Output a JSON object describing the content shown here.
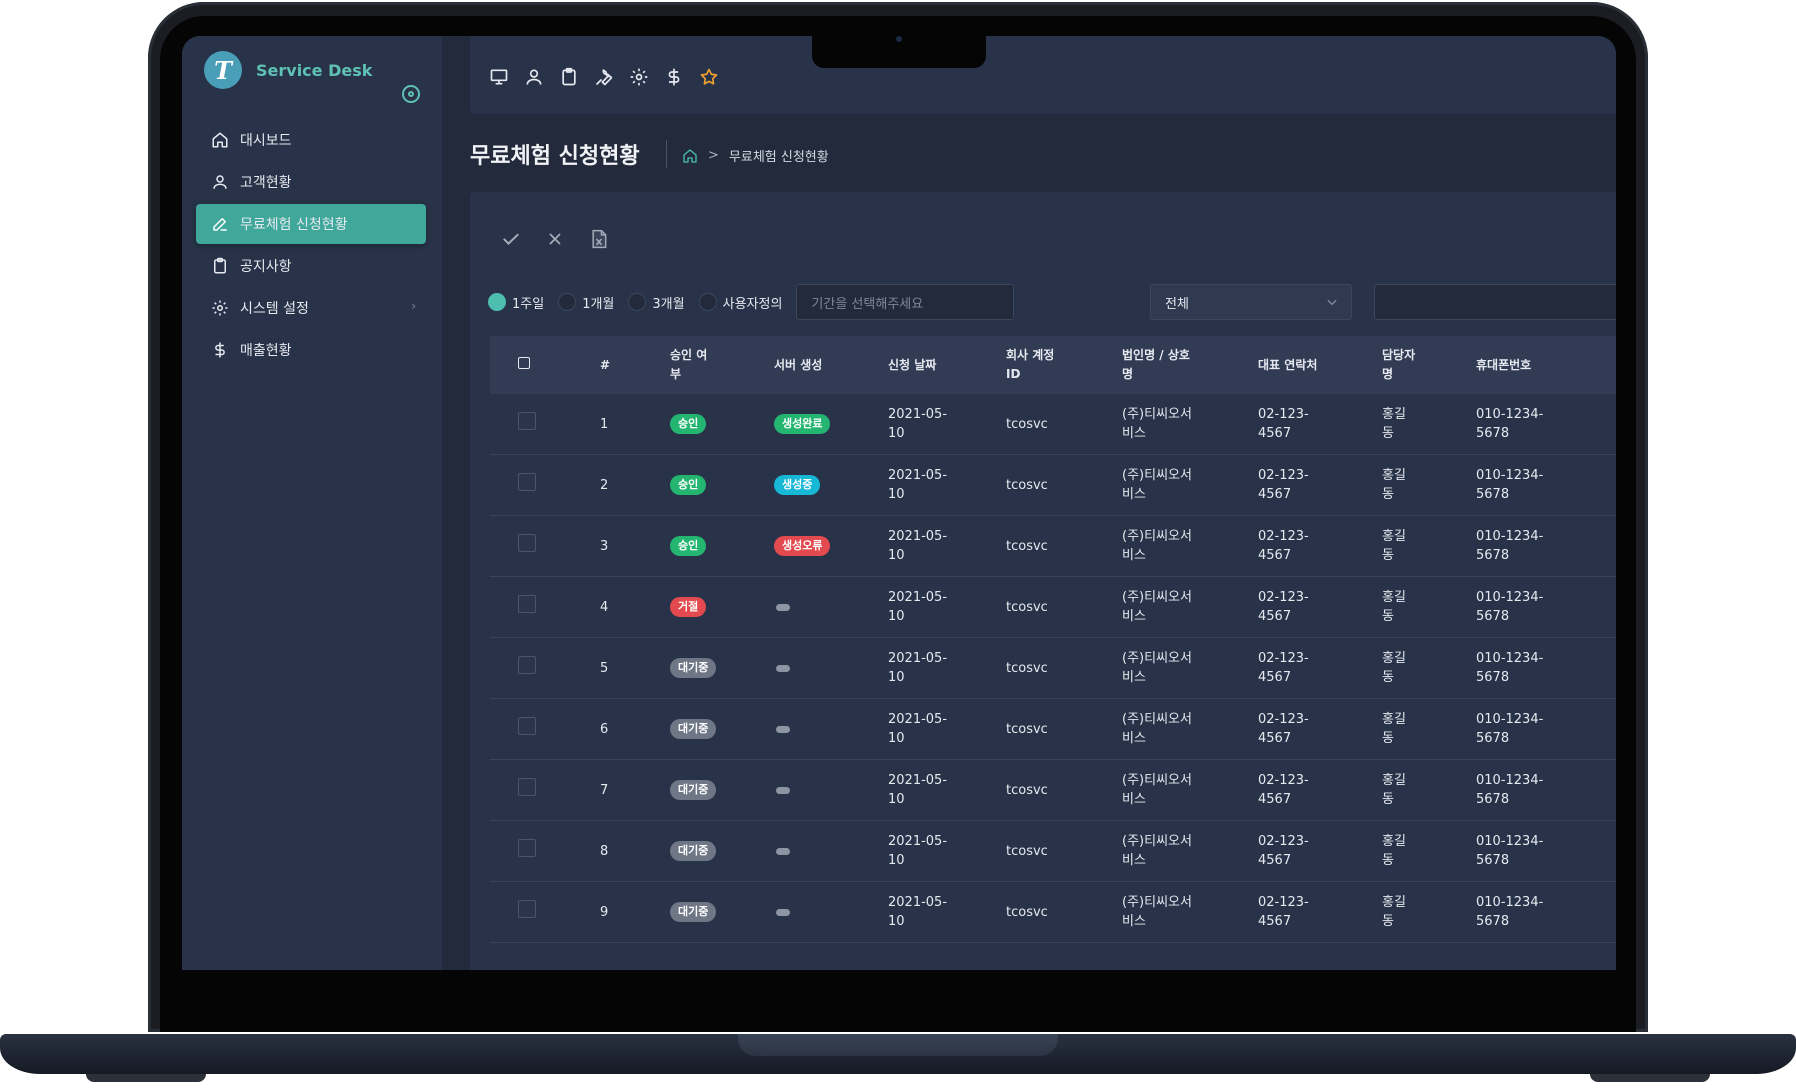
{
  "brand": {
    "logo_letter": "T",
    "name": "Service Desk"
  },
  "sidebar": {
    "items": [
      {
        "label": "대시보드",
        "icon": "home-icon",
        "active": false
      },
      {
        "label": "고객현황",
        "icon": "user-icon",
        "active": false
      },
      {
        "label": "무료체험 신청현황",
        "icon": "pencil-icon",
        "active": true
      },
      {
        "label": "공지사항",
        "icon": "clipboard-icon",
        "active": false
      },
      {
        "label": "시스템 설정",
        "icon": "gear-icon",
        "active": false,
        "has_submenu": true
      },
      {
        "label": "매출현황",
        "icon": "dollar-icon",
        "active": false
      }
    ],
    "submenu_chevron": "›"
  },
  "topbar": {
    "icons": [
      "monitor-icon",
      "user-icon",
      "clipboard-icon",
      "wrench-icon",
      "gear-icon",
      "dollar-icon",
      "star-icon"
    ]
  },
  "page": {
    "title": "무료체험 신청현황",
    "breadcrumb_sep": ">",
    "breadcrumb_current": "무료체험 신청현황"
  },
  "actions": [
    "check-icon",
    "close-icon",
    "excel-file-icon"
  ],
  "filters": {
    "periods": [
      {
        "label": "1주일",
        "checked": true
      },
      {
        "label": "1개월",
        "checked": false
      },
      {
        "label": "3개월",
        "checked": false
      },
      {
        "label": "사용자정의",
        "checked": false
      }
    ],
    "date_placeholder": "기간을 선택해주세요",
    "select_value": "전체"
  },
  "table": {
    "headers": {
      "num": "#",
      "approval": [
        "승인 여",
        "부"
      ],
      "server": "서버 생성",
      "date": "신청 날짜",
      "account": [
        "회사 계정",
        "ID"
      ],
      "corp": [
        "법인명 / 상호",
        "명"
      ],
      "tel": "대표 연락처",
      "manager": [
        "담당자",
        "명"
      ],
      "phone": "휴대폰번호"
    },
    "rows": [
      {
        "num": "1",
        "approval": "승인",
        "approval_color": "#24b571",
        "server": "생성완료",
        "server_color": "#24b571",
        "date": [
          "2021-05-",
          "10"
        ],
        "account": "tcosvc",
        "corp": [
          "(주)티씨오서",
          "비스"
        ],
        "tel": [
          "02-123-",
          "4567"
        ],
        "manager": [
          "홍길",
          "동"
        ],
        "phone": [
          "010-1234-",
          "5678"
        ]
      },
      {
        "num": "2",
        "approval": "승인",
        "approval_color": "#24b571",
        "server": "생성중",
        "server_color": "#17b7d6",
        "date": [
          "2021-05-",
          "10"
        ],
        "account": "tcosvc",
        "corp": [
          "(주)티씨오서",
          "비스"
        ],
        "tel": [
          "02-123-",
          "4567"
        ],
        "manager": [
          "홍길",
          "동"
        ],
        "phone": [
          "010-1234-",
          "5678"
        ]
      },
      {
        "num": "3",
        "approval": "승인",
        "approval_color": "#24b571",
        "server": "생성오류",
        "server_color": "#e24a4f",
        "date": [
          "2021-05-",
          "10"
        ],
        "account": "tcosvc",
        "corp": [
          "(주)티씨오서",
          "비스"
        ],
        "tel": [
          "02-123-",
          "4567"
        ],
        "manager": [
          "홍길",
          "동"
        ],
        "phone": [
          "010-1234-",
          "5678"
        ]
      },
      {
        "num": "4",
        "approval": "거절",
        "approval_color": "#e24a4f",
        "server": "",
        "server_color": "",
        "date": [
          "2021-05-",
          "10"
        ],
        "account": "tcosvc",
        "corp": [
          "(주)티씨오서",
          "비스"
        ],
        "tel": [
          "02-123-",
          "4567"
        ],
        "manager": [
          "홍길",
          "동"
        ],
        "phone": [
          "010-1234-",
          "5678"
        ]
      },
      {
        "num": "5",
        "approval": "대기중",
        "approval_color": "#6f7786",
        "server": "",
        "server_color": "",
        "date": [
          "2021-05-",
          "10"
        ],
        "account": "tcosvc",
        "corp": [
          "(주)티씨오서",
          "비스"
        ],
        "tel": [
          "02-123-",
          "4567"
        ],
        "manager": [
          "홍길",
          "동"
        ],
        "phone": [
          "010-1234-",
          "5678"
        ]
      },
      {
        "num": "6",
        "approval": "대기중",
        "approval_color": "#6f7786",
        "server": "",
        "server_color": "",
        "date": [
          "2021-05-",
          "10"
        ],
        "account": "tcosvc",
        "corp": [
          "(주)티씨오서",
          "비스"
        ],
        "tel": [
          "02-123-",
          "4567"
        ],
        "manager": [
          "홍길",
          "동"
        ],
        "phone": [
          "010-1234-",
          "5678"
        ]
      },
      {
        "num": "7",
        "approval": "대기중",
        "approval_color": "#6f7786",
        "server": "",
        "server_color": "",
        "date": [
          "2021-05-",
          "10"
        ],
        "account": "tcosvc",
        "corp": [
          "(주)티씨오서",
          "비스"
        ],
        "tel": [
          "02-123-",
          "4567"
        ],
        "manager": [
          "홍길",
          "동"
        ],
        "phone": [
          "010-1234-",
          "5678"
        ]
      },
      {
        "num": "8",
        "approval": "대기중",
        "approval_color": "#6f7786",
        "server": "",
        "server_color": "",
        "date": [
          "2021-05-",
          "10"
        ],
        "account": "tcosvc",
        "corp": [
          "(주)티씨오서",
          "비스"
        ],
        "tel": [
          "02-123-",
          "4567"
        ],
        "manager": [
          "홍길",
          "동"
        ],
        "phone": [
          "010-1234-",
          "5678"
        ]
      },
      {
        "num": "9",
        "approval": "대기중",
        "approval_color": "#6f7786",
        "server": "",
        "server_color": "",
        "date": [
          "2021-05-",
          "10"
        ],
        "account": "tcosvc",
        "corp": [
          "(주)티씨오서",
          "비스"
        ],
        "tel": [
          "02-123-",
          "4567"
        ],
        "manager": [
          "홍길",
          "동"
        ],
        "phone": [
          "010-1234-",
          "5678"
        ]
      }
    ]
  },
  "colors": {
    "accent": "#3fa89a",
    "sidebar_bg": "#283349",
    "page_bg": "#222a3b",
    "star": "#f0a030"
  }
}
